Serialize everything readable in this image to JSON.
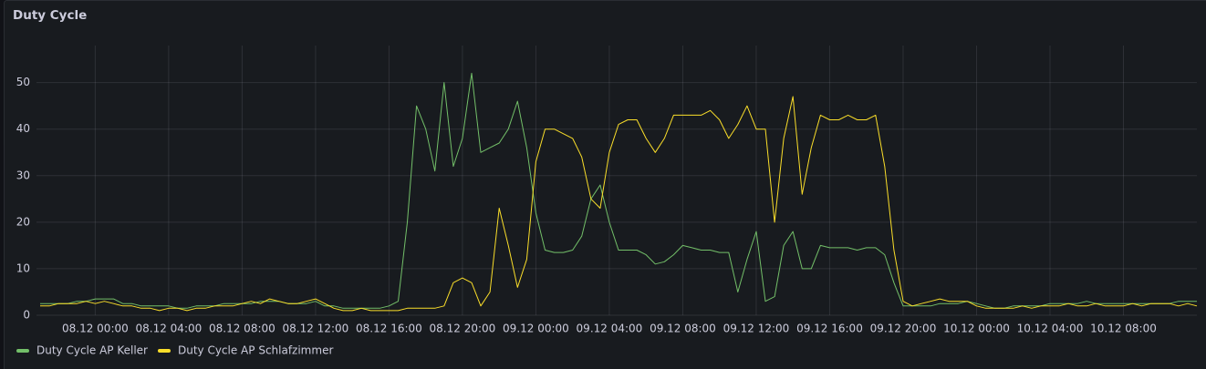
{
  "chart_data": {
    "type": "line",
    "title": "Duty Cycle",
    "x": [
      "07.12 21:00",
      "07.12 21:30",
      "07.12 22:00",
      "07.12 22:30",
      "07.12 23:00",
      "07.12 23:30",
      "08.12 00:00",
      "08.12 00:30",
      "08.12 01:00",
      "08.12 01:30",
      "08.12 02:00",
      "08.12 02:30",
      "08.12 03:00",
      "08.12 03:30",
      "08.12 04:00",
      "08.12 04:30",
      "08.12 05:00",
      "08.12 05:30",
      "08.12 06:00",
      "08.12 06:30",
      "08.12 07:00",
      "08.12 07:30",
      "08.12 08:00",
      "08.12 08:30",
      "08.12 09:00",
      "08.12 09:30",
      "08.12 10:00",
      "08.12 10:30",
      "08.12 11:00",
      "08.12 11:30",
      "08.12 12:00",
      "08.12 12:30",
      "08.12 13:00",
      "08.12 13:30",
      "08.12 14:00",
      "08.12 14:30",
      "08.12 15:00",
      "08.12 15:30",
      "08.12 16:00",
      "08.12 16:30",
      "08.12 17:00",
      "08.12 17:30",
      "08.12 18:00",
      "08.12 18:30",
      "08.12 19:00",
      "08.12 19:30",
      "08.12 20:00",
      "08.12 20:30",
      "08.12 21:00",
      "08.12 21:30",
      "08.12 22:00",
      "08.12 22:30",
      "08.12 23:00",
      "08.12 23:30",
      "09.12 00:00",
      "09.12 00:30",
      "09.12 01:00",
      "09.12 01:30",
      "09.12 02:00",
      "09.12 02:30",
      "09.12 03:00",
      "09.12 03:30",
      "09.12 04:00",
      "09.12 04:30",
      "09.12 05:00",
      "09.12 05:30",
      "09.12 06:00",
      "09.12 06:30",
      "09.12 07:00",
      "09.12 07:30",
      "09.12 08:00",
      "09.12 08:30",
      "09.12 09:00",
      "09.12 09:30",
      "09.12 10:00",
      "09.12 10:30",
      "09.12 11:00",
      "09.12 11:30",
      "09.12 12:00",
      "09.12 12:30",
      "09.12 13:00",
      "09.12 13:30",
      "09.12 14:00",
      "09.12 14:30",
      "09.12 15:00",
      "09.12 15:30",
      "09.12 16:00",
      "09.12 16:30",
      "09.12 17:00",
      "09.12 17:30",
      "09.12 18:00",
      "09.12 18:30",
      "09.12 19:00",
      "09.12 19:30",
      "09.12 20:00",
      "09.12 20:30",
      "09.12 21:00",
      "09.12 21:30",
      "09.12 22:00",
      "09.12 22:30",
      "09.12 23:00",
      "09.12 23:30",
      "10.12 00:00",
      "10.12 00:30",
      "10.12 01:00",
      "10.12 01:30",
      "10.12 02:00",
      "10.12 02:30",
      "10.12 03:00",
      "10.12 03:30",
      "10.12 04:00",
      "10.12 04:30",
      "10.12 05:00",
      "10.12 05:30",
      "10.12 06:00",
      "10.12 06:30",
      "10.12 07:00",
      "10.12 07:30",
      "10.12 08:00",
      "10.12 08:30",
      "10.12 09:00",
      "10.12 09:30",
      "10.12 10:00",
      "10.12 10:30",
      "10.12 11:00",
      "10.12 11:30",
      "10.12 12:00"
    ],
    "series": [
      {
        "name": "Duty Cycle AP Keller",
        "color": "#73bf69",
        "values": [
          2.5,
          2.5,
          2.5,
          2.5,
          3,
          3,
          3.5,
          3.5,
          3.5,
          2.5,
          2.5,
          2,
          2,
          2,
          2,
          1.5,
          1.5,
          2,
          2,
          2,
          2.5,
          2.5,
          2.5,
          2.5,
          3,
          3,
          3,
          2.5,
          2.5,
          2.5,
          3,
          2,
          2,
          1.5,
          1.5,
          1.5,
          1.5,
          1.5,
          2,
          3,
          20,
          45,
          40,
          31,
          50,
          32,
          38,
          52,
          35,
          36,
          37,
          40,
          46,
          36,
          22,
          14,
          13.5,
          13.5,
          14,
          17,
          25,
          28,
          20,
          14,
          14,
          14,
          13,
          11,
          11.5,
          13,
          15,
          14.5,
          14,
          14,
          13.5,
          13.5,
          5,
          12,
          18,
          3,
          4,
          15,
          18,
          10,
          10,
          15,
          14.5,
          14.5,
          14.5,
          14,
          14.5,
          14.5,
          13,
          7,
          2,
          2,
          2,
          2,
          2.5,
          2.5,
          2.5,
          3,
          2.5,
          2,
          1.5,
          1.5,
          2,
          2,
          2,
          2,
          2.5,
          2.5,
          2.5,
          2.5,
          3,
          2.5,
          2.5,
          2.5,
          2.5,
          2.5,
          2.5,
          2.5,
          2.5,
          2.5,
          3,
          3,
          3
        ]
      },
      {
        "name": "Duty Cycle AP Schlafzimmer",
        "color": "#fade2a",
        "values": [
          2,
          2,
          2.5,
          2.5,
          2.5,
          3,
          2.5,
          3,
          2.5,
          2,
          2,
          1.5,
          1.5,
          1,
          1.5,
          1.5,
          1,
          1.5,
          1.5,
          2,
          2,
          2,
          2.5,
          3,
          2.5,
          3.5,
          3,
          2.5,
          2.5,
          3,
          3.5,
          2.5,
          1.5,
          1,
          1,
          1.5,
          1,
          1,
          1,
          1,
          1.5,
          1.5,
          1.5,
          1.5,
          2,
          7,
          8,
          7,
          2,
          5,
          23,
          15,
          6,
          12,
          33,
          40,
          40,
          39,
          38,
          34,
          25,
          23,
          35,
          41,
          42,
          42,
          38,
          35,
          38,
          43,
          43,
          43,
          43,
          44,
          42,
          38,
          41,
          45,
          40,
          40,
          20,
          38,
          47,
          26,
          36,
          43,
          42,
          42,
          43,
          42,
          42,
          43,
          32,
          14,
          3,
          2,
          2.5,
          3,
          3.5,
          3,
          3,
          3,
          2,
          1.5,
          1.5,
          1.5,
          1.5,
          2,
          1.5,
          2,
          2,
          2,
          2.5,
          2,
          2,
          2.5,
          2,
          2,
          2,
          2.5,
          2,
          2.5,
          2.5,
          2.5,
          2,
          2.5,
          2
        ]
      }
    ],
    "xticks": [
      "08.12 00:00",
      "08.12 04:00",
      "08.12 08:00",
      "08.12 12:00",
      "08.12 16:00",
      "08.12 20:00",
      "09.12 00:00",
      "09.12 04:00",
      "09.12 08:00",
      "09.12 12:00",
      "09.12 16:00",
      "09.12 20:00",
      "10.12 00:00",
      "10.12 04:00",
      "10.12 08:00"
    ],
    "ylim": [
      0,
      56
    ],
    "yticks": [
      0,
      10,
      20,
      30,
      40,
      50
    ],
    "grid": true,
    "legend": "bottom-left"
  }
}
